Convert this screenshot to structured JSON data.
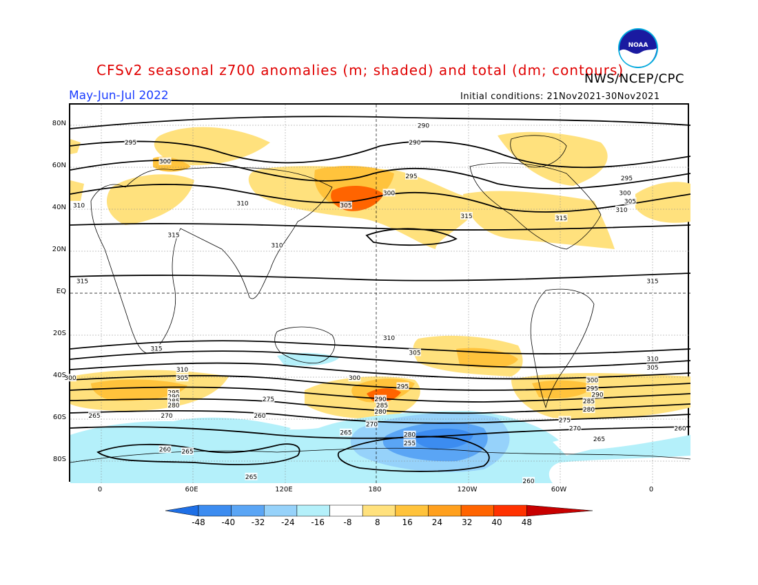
{
  "header": {
    "title": "CFSv2 seasonal z700 anomalies (m; shaded) and total (dm; contours)",
    "agency": "NWS/NCEP/CPC",
    "period": "May-Jun-Jul 2022",
    "initial_conditions": "Initial conditions: 21Nov2021-30Nov2021",
    "logo_text": "NOAA"
  },
  "axes": {
    "lat_labels": [
      "80N",
      "60N",
      "40N",
      "20N",
      "EQ",
      "20S",
      "40S",
      "60S",
      "80S"
    ],
    "lon_labels": [
      "0",
      "60E",
      "120E",
      "180",
      "120W",
      "60W",
      "0"
    ]
  },
  "colorbar": {
    "labels": [
      "-48",
      "-40",
      "-32",
      "-24",
      "-16",
      "-8",
      "8",
      "16",
      "24",
      "32",
      "40",
      "48"
    ],
    "colors": [
      "#1e6fe6",
      "#3c8cf0",
      "#5aa5f5",
      "#96d2fa",
      "#b4f0fa",
      "#ffffff",
      "#ffe17d",
      "#ffc33c",
      "#ffa01e",
      "#ff6400",
      "#ff3200",
      "#c80000"
    ]
  },
  "contour_labels": [
    {
      "text": "290",
      "lat": 80,
      "lon": -175
    },
    {
      "text": "290",
      "lat": 72,
      "lon": -180
    },
    {
      "text": "295",
      "lat": 72,
      "lon": 15
    },
    {
      "text": "300",
      "lat": 63,
      "lon": 35
    },
    {
      "text": "310",
      "lat": 42,
      "lon": -15
    },
    {
      "text": "315",
      "lat": 28,
      "lon": 40
    },
    {
      "text": "310",
      "lat": 43,
      "lon": 80
    },
    {
      "text": "310",
      "lat": 23,
      "lon": 100
    },
    {
      "text": "305",
      "lat": 42,
      "lon": 140
    },
    {
      "text": "300",
      "lat": 48,
      "lon": 165
    },
    {
      "text": "295",
      "lat": 56,
      "lon": 178
    },
    {
      "text": "315",
      "lat": 37,
      "lon": -150
    },
    {
      "text": "315",
      "lat": 36,
      "lon": -95
    },
    {
      "text": "295",
      "lat": 55,
      "lon": -57
    },
    {
      "text": "300",
      "lat": 48,
      "lon": -58
    },
    {
      "text": "305",
      "lat": 44,
      "lon": -55
    },
    {
      "text": "310",
      "lat": 40,
      "lon": -60
    },
    {
      "text": "315",
      "lat": 6,
      "lon": -13
    },
    {
      "text": "315",
      "lat": 6,
      "lon": -42
    },
    {
      "text": "315",
      "lat": -26,
      "lon": 30
    },
    {
      "text": "310",
      "lat": -21,
      "lon": 165
    },
    {
      "text": "305",
      "lat": -28,
      "lon": 180
    },
    {
      "text": "310",
      "lat": -31,
      "lon": -42
    },
    {
      "text": "305",
      "lat": -35,
      "lon": -42
    },
    {
      "text": "310",
      "lat": -36,
      "lon": 45
    },
    {
      "text": "305",
      "lat": -40,
      "lon": 45
    },
    {
      "text": "300",
      "lat": -40,
      "lon": -20
    },
    {
      "text": "300",
      "lat": -40,
      "lon": 145
    },
    {
      "text": "295",
      "lat": -44,
      "lon": 173
    },
    {
      "text": "295",
      "lat": -47,
      "lon": 40
    },
    {
      "text": "290",
      "lat": -49,
      "lon": 40
    },
    {
      "text": "285",
      "lat": -51,
      "lon": 40
    },
    {
      "text": "280",
      "lat": -53,
      "lon": 40
    },
    {
      "text": "275",
      "lat": -50,
      "lon": 95
    },
    {
      "text": "270",
      "lat": -58,
      "lon": 36
    },
    {
      "text": "290",
      "lat": -50,
      "lon": 160
    },
    {
      "text": "285",
      "lat": -53,
      "lon": 161
    },
    {
      "text": "280",
      "lat": -56,
      "lon": 160
    },
    {
      "text": "270",
      "lat": -62,
      "lon": 155
    },
    {
      "text": "265",
      "lat": -58,
      "lon": -6
    },
    {
      "text": "260",
      "lat": -58,
      "lon": 90
    },
    {
      "text": "265",
      "lat": -66,
      "lon": 140
    },
    {
      "text": "300",
      "lat": -41,
      "lon": -77
    },
    {
      "text": "295",
      "lat": -45,
      "lon": -77
    },
    {
      "text": "290",
      "lat": -48,
      "lon": -74
    },
    {
      "text": "285",
      "lat": -51,
      "lon": -79
    },
    {
      "text": "280",
      "lat": -55,
      "lon": -79
    },
    {
      "text": "275",
      "lat": -60,
      "lon": -93
    },
    {
      "text": "270",
      "lat": -64,
      "lon": -87
    },
    {
      "text": "265",
      "lat": -69,
      "lon": -73
    },
    {
      "text": "260",
      "lat": -64,
      "lon": -26
    },
    {
      "text": "280",
      "lat": -67,
      "lon": 177
    },
    {
      "text": "255",
      "lat": -71,
      "lon": 177
    },
    {
      "text": "260",
      "lat": -74,
      "lon": 35
    },
    {
      "text": "265",
      "lat": -75,
      "lon": 48
    },
    {
      "text": "265",
      "lat": -87,
      "lon": 85
    },
    {
      "text": "260",
      "lat": -89,
      "lon": -114
    }
  ]
}
